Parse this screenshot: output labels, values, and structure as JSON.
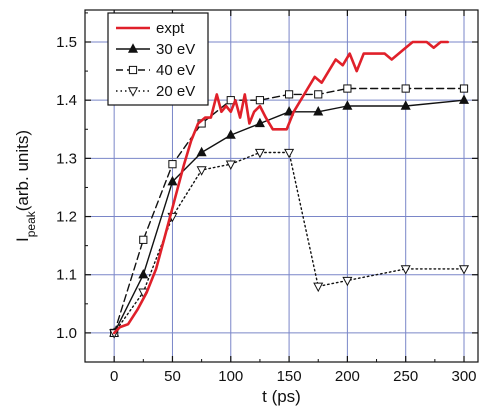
{
  "chart_data": {
    "type": "line",
    "title": "",
    "xlabel": "t (ps)",
    "ylabel_main": "I",
    "ylabel_sub": "peak",
    "ylabel_rest": "(arb. units)",
    "xlim": [
      -25,
      312
    ],
    "ylim": [
      0.95,
      1.555
    ],
    "x_ticks": [
      0,
      50,
      100,
      150,
      200,
      250,
      300
    ],
    "x_tick_labels": [
      "0",
      "50",
      "100",
      "150",
      "200",
      "250",
      "300"
    ],
    "y_ticks": [
      1.0,
      1.1,
      1.2,
      1.3,
      1.4,
      1.5
    ],
    "y_tick_labels": [
      "1.0",
      "1.1",
      "1.2",
      "1.3",
      "1.4",
      "1.5"
    ],
    "grid": true,
    "legend_position": "top-left",
    "series": [
      {
        "name": "expt",
        "color": "#e0202a",
        "style": "solid",
        "marker": "none",
        "x": [
          0,
          5,
          12,
          20,
          28,
          36,
          44,
          52,
          60,
          66,
          72,
          78,
          83,
          88,
          92,
          96,
          100,
          104,
          108,
          112,
          116,
          120,
          125,
          130,
          136,
          142,
          148,
          154,
          160,
          166,
          172,
          178,
          184,
          190,
          196,
          202,
          208,
          214,
          220,
          226,
          232,
          238,
          244,
          250,
          256,
          262,
          268,
          274,
          280,
          286
        ],
        "y": [
          1.0,
          1.01,
          1.015,
          1.04,
          1.07,
          1.11,
          1.17,
          1.23,
          1.29,
          1.33,
          1.36,
          1.37,
          1.37,
          1.41,
          1.38,
          1.39,
          1.38,
          1.4,
          1.37,
          1.41,
          1.36,
          1.38,
          1.39,
          1.37,
          1.35,
          1.35,
          1.35,
          1.38,
          1.4,
          1.42,
          1.44,
          1.43,
          1.45,
          1.47,
          1.46,
          1.48,
          1.45,
          1.48,
          1.48,
          1.48,
          1.48,
          1.47,
          1.48,
          1.49,
          1.5,
          1.5,
          1.5,
          1.49,
          1.5,
          1.5
        ]
      },
      {
        "name": "30 eV",
        "color": "#111111",
        "style": "solid",
        "marker": "triangle-up-filled",
        "x": [
          0,
          25,
          50,
          75,
          100,
          125,
          150,
          175,
          200,
          250,
          300
        ],
        "y": [
          1.0,
          1.1,
          1.26,
          1.31,
          1.34,
          1.36,
          1.38,
          1.38,
          1.39,
          1.39,
          1.4
        ]
      },
      {
        "name": "40 eV",
        "color": "#111111",
        "style": "dashed",
        "marker": "square-open",
        "x": [
          0,
          25,
          50,
          75,
          100,
          125,
          150,
          175,
          200,
          250,
          300
        ],
        "y": [
          1.0,
          1.16,
          1.29,
          1.36,
          1.4,
          1.4,
          1.41,
          1.41,
          1.42,
          1.42,
          1.42
        ]
      },
      {
        "name": "20 eV",
        "color": "#111111",
        "style": "dotted",
        "marker": "triangle-down-open",
        "x": [
          0,
          25,
          50,
          75,
          100,
          125,
          150,
          175,
          200,
          250,
          300
        ],
        "y": [
          1.0,
          1.07,
          1.2,
          1.28,
          1.29,
          1.31,
          1.31,
          1.08,
          1.09,
          1.11,
          1.11
        ]
      }
    ]
  },
  "colors": {
    "grid": "#7a86c8",
    "axis": "#111111",
    "expt": "#e0202a"
  }
}
